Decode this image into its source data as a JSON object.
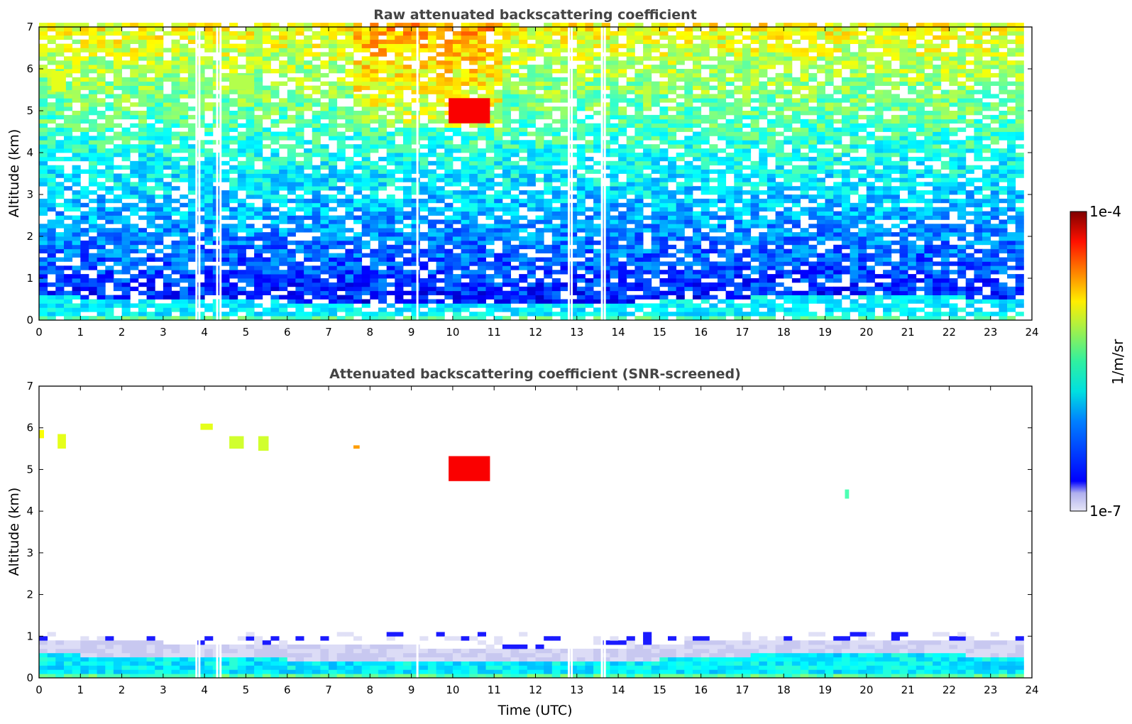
{
  "chart_data": [
    {
      "type": "heatmap",
      "title": "Raw attenuated backscattering coefficient",
      "xlabel": "",
      "ylabel": "Altitude (km)",
      "xlim": [
        0,
        24
      ],
      "ylim": [
        0,
        7
      ],
      "xticks": [
        "0",
        "1",
        "2",
        "3",
        "4",
        "5",
        "6",
        "7",
        "8",
        "9",
        "10",
        "11",
        "12",
        "13",
        "14",
        "15",
        "16",
        "17",
        "18",
        "19",
        "20",
        "21",
        "22",
        "23",
        "24"
      ],
      "yticks": [
        "0",
        "1",
        "2",
        "3",
        "4",
        "5",
        "6",
        "7"
      ],
      "data_end_time": 23.65,
      "boundary_layer_top_km": [
        {
          "t": 0,
          "z": 0.52
        },
        {
          "t": 2,
          "z": 0.48
        },
        {
          "t": 4,
          "z": 0.42
        },
        {
          "t": 6,
          "z": 0.4
        },
        {
          "t": 8,
          "z": 0.38
        },
        {
          "t": 10,
          "z": 0.33
        },
        {
          "t": 12,
          "z": 0.3
        },
        {
          "t": 14,
          "z": 0.33
        },
        {
          "t": 15.5,
          "z": 0.45
        },
        {
          "t": 17,
          "z": 0.5
        },
        {
          "t": 19,
          "z": 0.55
        },
        {
          "t": 21,
          "z": 0.52
        },
        {
          "t": 23.65,
          "z": 0.48
        }
      ],
      "missing_data_times": [
        3.78,
        3.85,
        4.28,
        4.36,
        9.12,
        12.78,
        12.85,
        13.58,
        13.65
      ],
      "cloud_features": [
        {
          "t0": 0.3,
          "t1": 0.65,
          "z0": 5.45,
          "z1": 5.95,
          "level": 0.6
        },
        {
          "t0": 4.6,
          "t1": 5.2,
          "z0": 5.5,
          "z1": 5.85,
          "level": 0.55
        },
        {
          "t0": 7.6,
          "t1": 7.8,
          "z0": 5.45,
          "z1": 5.6,
          "level": 0.7
        },
        {
          "t0": 9.9,
          "t1": 10.9,
          "z0": 4.7,
          "z1": 5.3,
          "level": 0.88
        }
      ],
      "colorbar": {
        "min": "1e-7",
        "max": "1e-4",
        "label": "1/m/sr",
        "scale": "log",
        "colormap": "jet"
      }
    },
    {
      "type": "heatmap",
      "title": "Attenuated backscattering coefficient (SNR-screened)",
      "xlabel": "Time (UTC)",
      "ylabel": "Altitude (km)",
      "xlim": [
        0,
        24
      ],
      "ylim": [
        0,
        7
      ],
      "xticks": [
        "0",
        "1",
        "2",
        "3",
        "4",
        "5",
        "6",
        "7",
        "8",
        "9",
        "10",
        "11",
        "12",
        "13",
        "14",
        "15",
        "16",
        "17",
        "18",
        "19",
        "20",
        "21",
        "22",
        "23",
        "24"
      ],
      "yticks": [
        "0",
        "1",
        "2",
        "3",
        "4",
        "5",
        "6",
        "7"
      ],
      "data_end_time": 23.65,
      "cloud_features": [
        {
          "t0": 0.45,
          "t1": 0.65,
          "z0": 5.5,
          "z1": 5.85,
          "level": 0.6
        },
        {
          "t0": 0.0,
          "t1": 0.12,
          "z0": 5.75,
          "z1": 5.95,
          "level": 0.62
        },
        {
          "t0": 4.6,
          "t1": 4.95,
          "z0": 5.5,
          "z1": 5.8,
          "level": 0.58
        },
        {
          "t0": 5.3,
          "t1": 5.55,
          "z0": 5.45,
          "z1": 5.8,
          "level": 0.58
        },
        {
          "t0": 3.9,
          "t1": 4.2,
          "z0": 5.95,
          "z1": 6.1,
          "level": 0.6
        },
        {
          "t0": 7.6,
          "t1": 7.75,
          "z0": 5.5,
          "z1": 5.58,
          "level": 0.72
        },
        {
          "t0": 9.9,
          "t1": 10.9,
          "z0": 4.72,
          "z1": 5.32,
          "level": 0.88
        },
        {
          "t0": 19.48,
          "t1": 19.58,
          "z0": 4.3,
          "z1": 4.52,
          "level": 0.45
        }
      ],
      "colorbar": {
        "min": "1e-7",
        "max": "1e-4",
        "label": "1/m/sr",
        "scale": "log",
        "colormap": "jet"
      }
    }
  ]
}
